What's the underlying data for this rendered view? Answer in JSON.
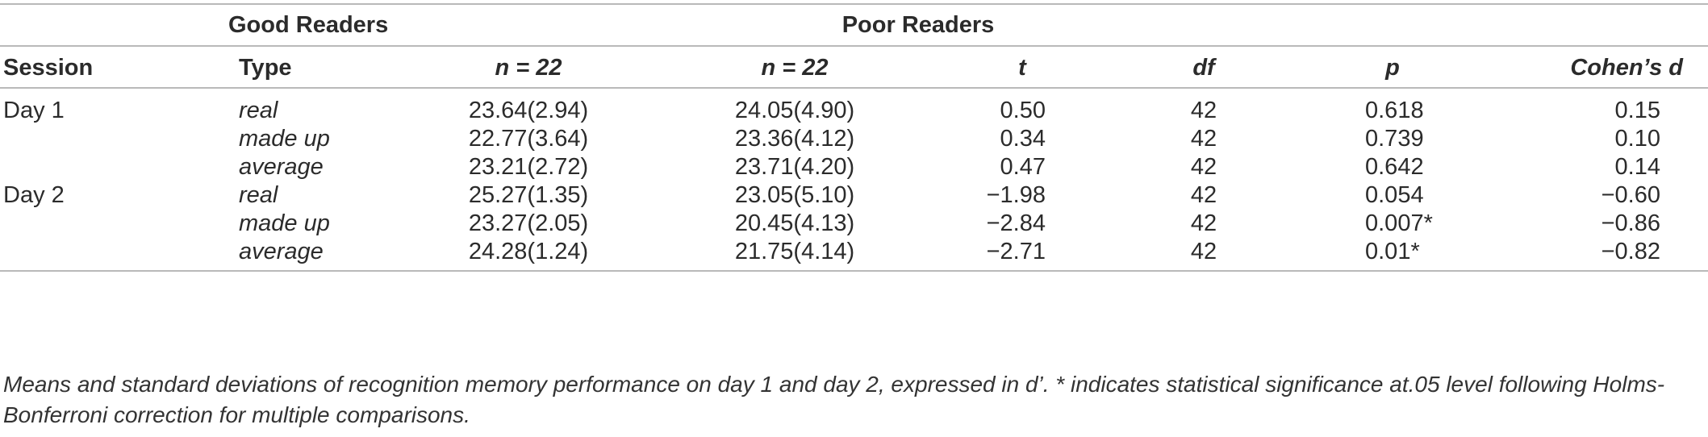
{
  "table": {
    "group_headers": {
      "good": "Good Readers",
      "poor": "Poor Readers"
    },
    "col_headers": {
      "session": "Session",
      "type": "Type",
      "good_n": "n = 22",
      "poor_n": "n = 22",
      "t": "t",
      "df": "df",
      "p": "p",
      "cohens_d": "Cohen’s d"
    },
    "rows": [
      {
        "session": "Day 1",
        "type": "real",
        "good": "23.64(2.94)",
        "poor": "24.05(4.90)",
        "t": "0.50",
        "df": "42",
        "p": "0.618",
        "d": "0.15"
      },
      {
        "session": "",
        "type": "made up",
        "good": "22.77(3.64)",
        "poor": "23.36(4.12)",
        "t": "0.34",
        "df": "42",
        "p": "0.739",
        "d": "0.10"
      },
      {
        "session": "",
        "type": "average",
        "good": "23.21(2.72)",
        "poor": "23.71(4.20)",
        "t": "0.47",
        "df": "42",
        "p": "0.642",
        "d": "0.14"
      },
      {
        "session": "Day 2",
        "type": "real",
        "good": "25.27(1.35)",
        "poor": "23.05(5.10)",
        "t": "−1.98",
        "df": "42",
        "p": "0.054",
        "d": "−0.60"
      },
      {
        "session": "",
        "type": "made up",
        "good": "23.27(2.05)",
        "poor": "20.45(4.13)",
        "t": "−2.84",
        "df": "42",
        "p": "0.007*",
        "d": "−0.86"
      },
      {
        "session": "",
        "type": "average",
        "good": "24.28(1.24)",
        "poor": "21.75(4.14)",
        "t": "−2.71",
        "df": "42",
        "p": "0.01*",
        "d": "−0.82"
      }
    ]
  },
  "caption": "Means and standard deviations of recognition memory performance on day 1 and day 2, expressed in d’. * indicates statistical significance at.05 level following Holms-Bonferroni correction for multiple comparisons."
}
